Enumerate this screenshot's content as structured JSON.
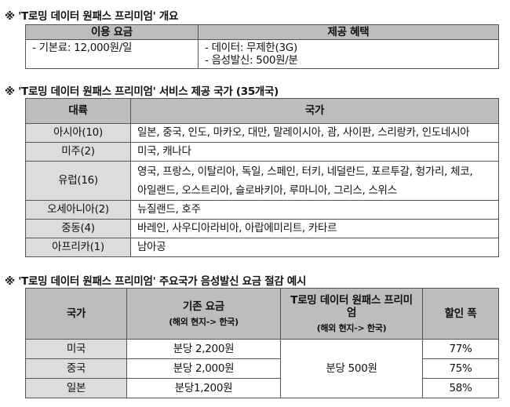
{
  "overview": {
    "title": "※ 'T로밍 데이터 원패스 프리미엄' 개요",
    "headers": [
      "이용 요금",
      "제공 혜택"
    ],
    "fee": "- 기본료: 12,000원/일",
    "benefits": [
      "- 데이터: 무제한(3G)",
      "- 음성발신: 500원/분"
    ]
  },
  "countries": {
    "title": "※ 'T로밍 데이터 원패스 프리미엄' 서비스 제공 국가 (35개국)",
    "headers": [
      "대륙",
      "국가"
    ],
    "rows": [
      {
        "continent": "아시아(10)",
        "lines": [
          "일본, 중국, 인도, 마카오, 대만, 말레이시아, 괌, 사이판, 스리랑카, 인도네시아"
        ]
      },
      {
        "continent": "미주(2)",
        "lines": [
          "미국, 캐나다"
        ]
      },
      {
        "continent": "유럽(16)",
        "lines": [
          "영국, 프랑스, 이탈리아, 독일, 스페인, 터키, 네덜란드, 포르투갈, 헝가리, 체코,",
          "아일랜드, 오스트리아, 슬로바키아, 루마니아, 그리스, 스위스"
        ]
      },
      {
        "continent": "오세아니아(2)",
        "lines": [
          "뉴질랜드, 호주"
        ]
      },
      {
        "continent": "중동(4)",
        "lines": [
          "바레인, 사우디아라비아, 아랍에미리트, 카타르"
        ]
      },
      {
        "continent": "아프리카(1)",
        "lines": [
          "남아공"
        ]
      }
    ]
  },
  "savings": {
    "title": "※ 'T로밍 데이터 원패스 프리미엄' 주요국가 음성발신 요금 절감 예시",
    "headers": {
      "country": "국가",
      "old": "기존 요금",
      "old_sub": "(해외 현지-> 한국)",
      "new": "T로밍 데이터 원패스 프리미엄",
      "new_sub": "(해외 현지-> 한국)",
      "discount": "할인 폭"
    },
    "new_rate": "분당 500원",
    "rows": [
      {
        "country": "미국",
        "old": "분당 2,200원",
        "discount": "77%"
      },
      {
        "country": "중국",
        "old": "분당 2,000원",
        "discount": "75%"
      },
      {
        "country": "일본",
        "old": "분당1,200원",
        "discount": "58%"
      }
    ]
  }
}
